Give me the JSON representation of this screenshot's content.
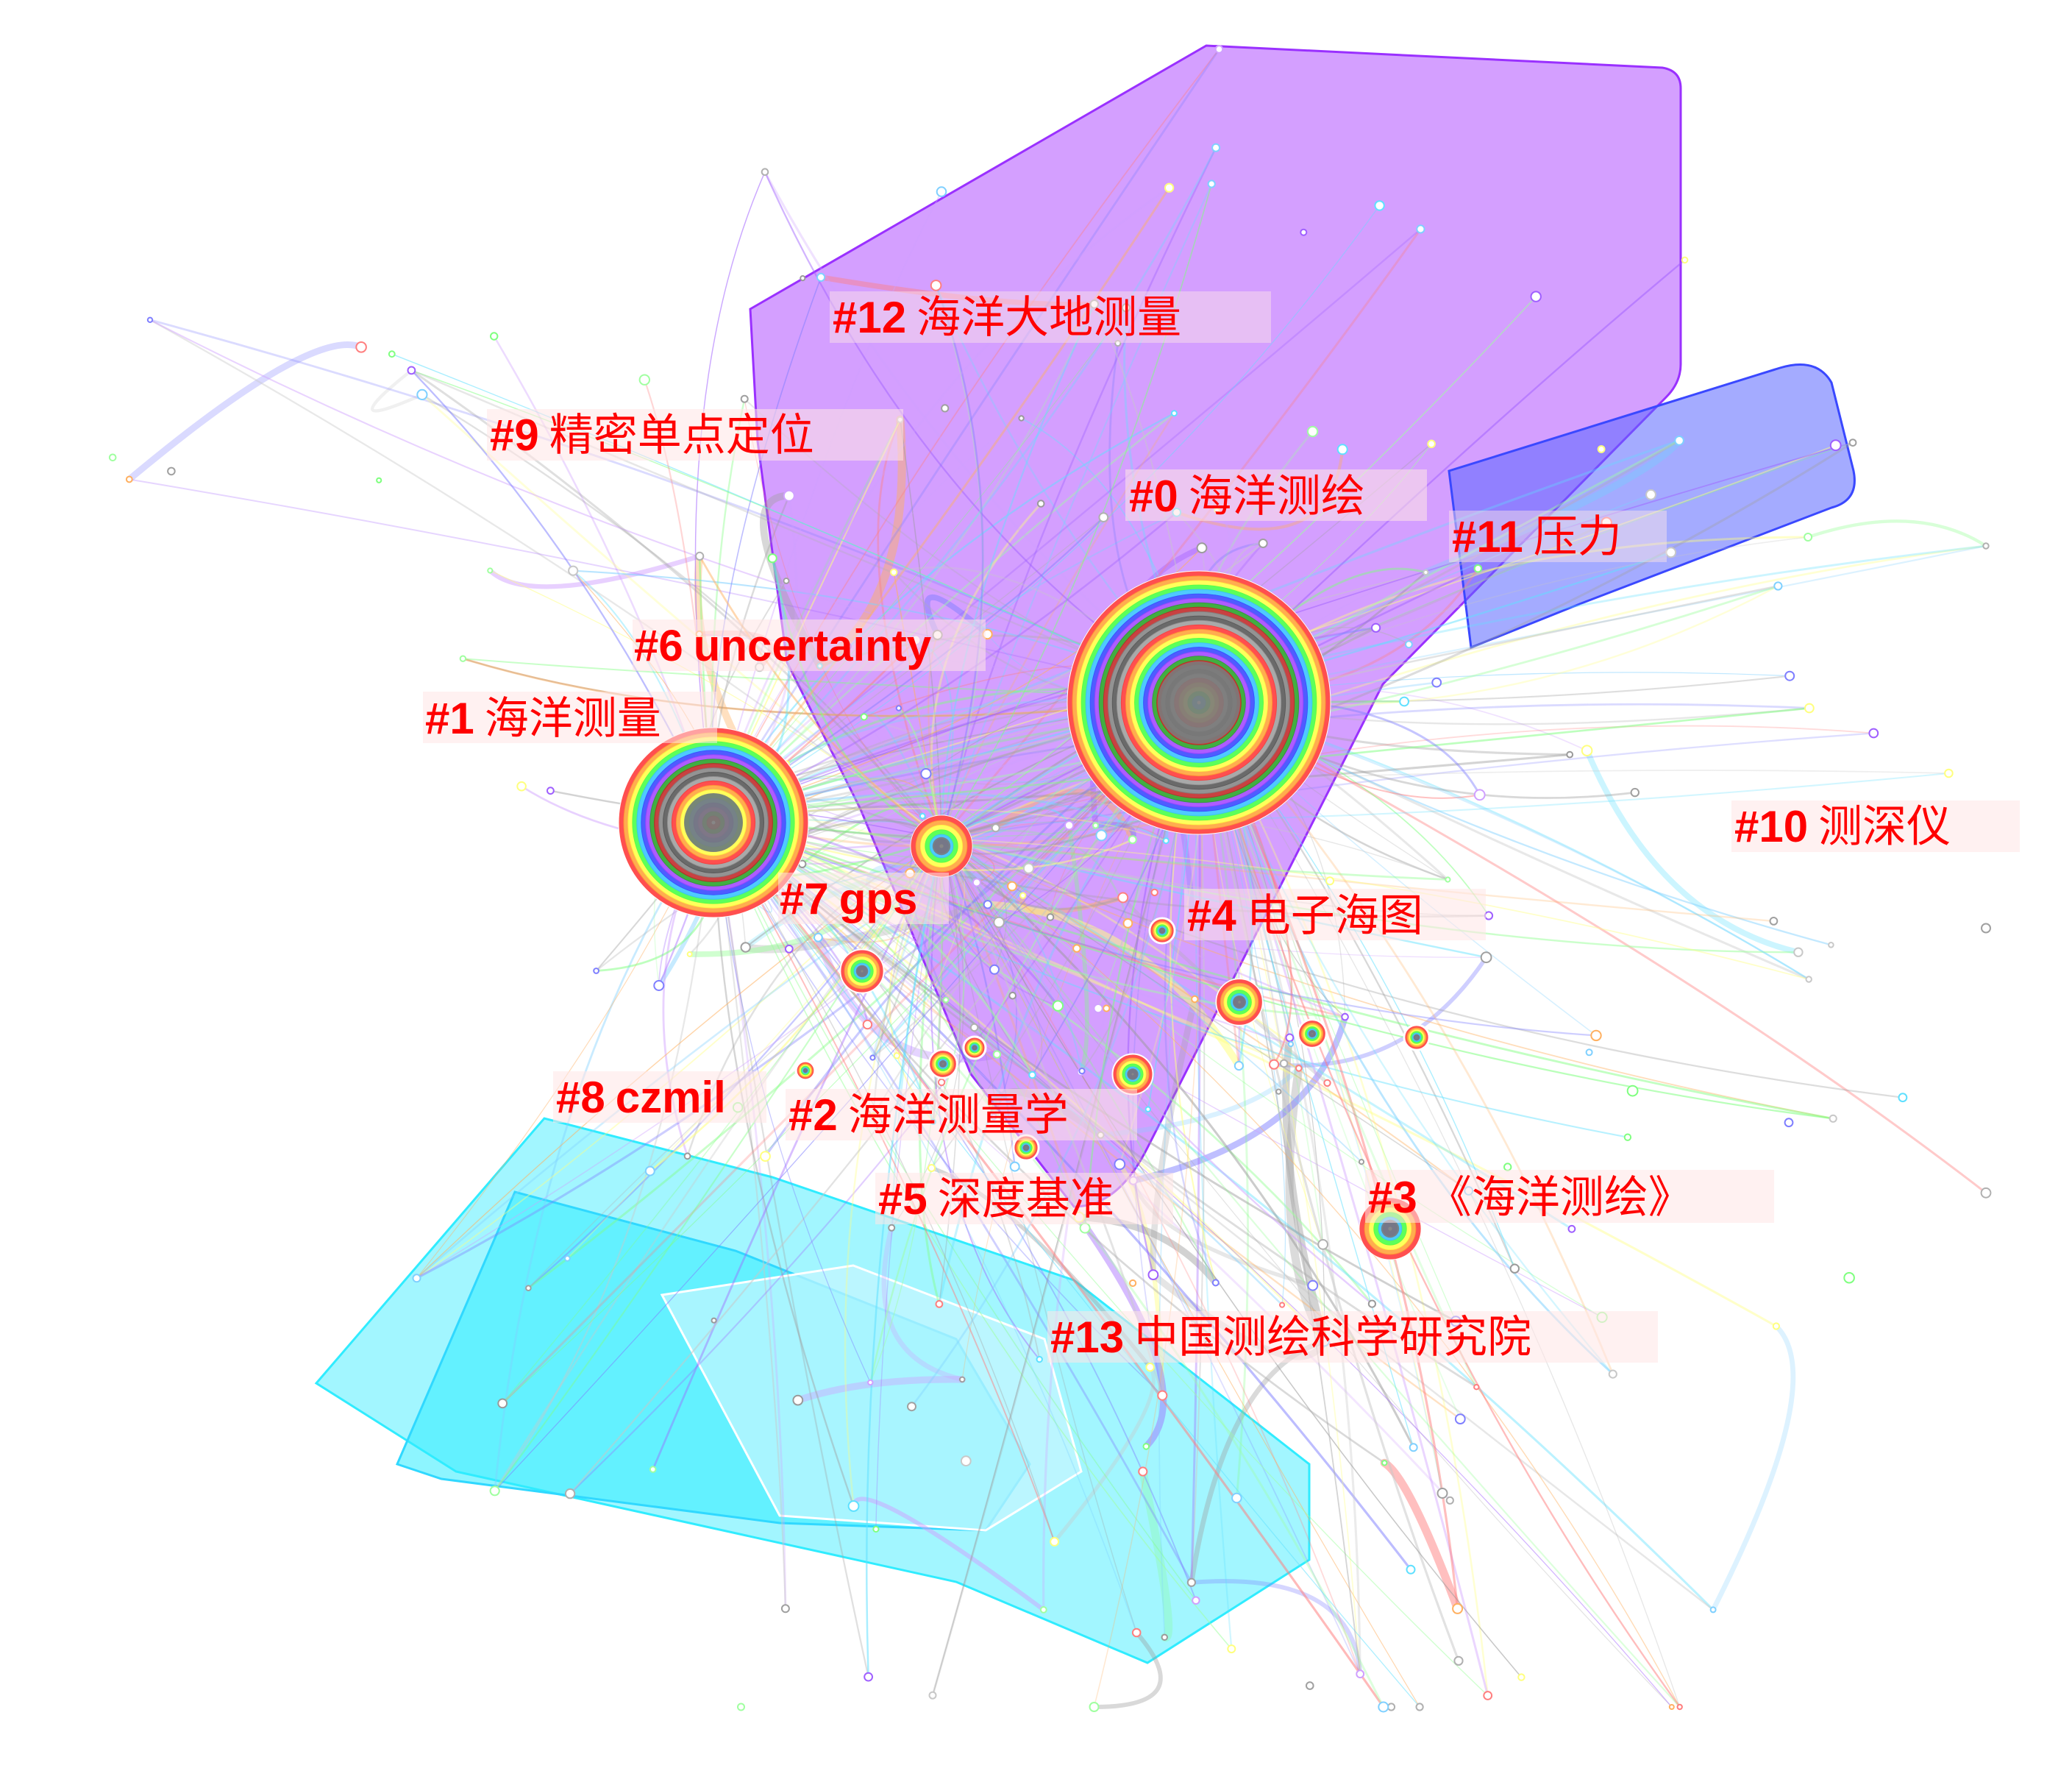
{
  "clusters": [
    {
      "id": "#0",
      "term": "海洋测绘",
      "hull_color": "#b050ff",
      "color": "#8040ff"
    },
    {
      "id": "#1",
      "term": "海洋测量",
      "color": "#7f7f7f"
    },
    {
      "id": "#2",
      "term": "海洋测量学",
      "color": "#7fff7f"
    },
    {
      "id": "#3",
      "term": "《海洋测绘》",
      "color": "#ff9f3f"
    },
    {
      "id": "#4",
      "term": "电子海图",
      "color": "#9f5fff"
    },
    {
      "id": "#5",
      "term": "深度基准",
      "color": "#bfbfbf"
    },
    {
      "id": "#6",
      "term": "uncertainty",
      "color": "#7fbfff"
    },
    {
      "id": "#7",
      "term": "gps",
      "color": "#3f7fff"
    },
    {
      "id": "#8",
      "term": "czmil",
      "color": "#ff5f5f"
    },
    {
      "id": "#9",
      "term": "精密单点定位",
      "color": "#ff3f7f"
    },
    {
      "id": "#10",
      "term": "测深仪",
      "color": "#9f9f9f"
    },
    {
      "id": "#11",
      "term": "压力",
      "hull_color": "#6070ff",
      "color": "#5060ff"
    },
    {
      "id": "#12",
      "term": "海洋大地测量",
      "color": "#d0a0ff"
    },
    {
      "id": "#13",
      "term": "中国测绘科学研究院",
      "color": "#bfbfbf"
    }
  ],
  "colors": {
    "label": "#ff0000",
    "label_bg": "#ffe6e6",
    "hull_purple": "#b050ff",
    "hull_blue": "#5a66ff",
    "hull_cyan": "#30ecff"
  }
}
